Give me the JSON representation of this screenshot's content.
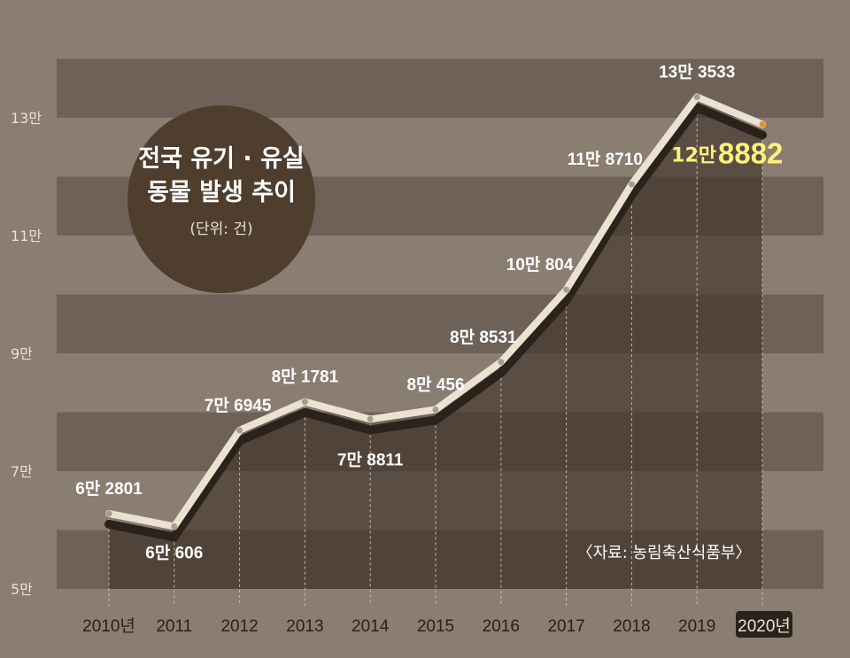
{
  "chart_data": {
    "type": "line",
    "title": "전국 유기 · 유실\n동물 발생 추이",
    "unit_note": "(단위: 건)",
    "source": "〈자료: 농림축산식품부〉",
    "categories": [
      "2010년",
      "2011",
      "2012",
      "2013",
      "2014",
      "2015",
      "2016",
      "2017",
      "2018",
      "2019",
      "2020년"
    ],
    "values": [
      62801,
      60606,
      76945,
      81781,
      78811,
      80456,
      88531,
      100804,
      118710,
      133533,
      128882
    ],
    "value_labels": [
      "6만 2801",
      "6만 606",
      "7만 6945",
      "8만 1781",
      "7만 8811",
      "8만 456",
      "8만 8531",
      "10만 804",
      "11만 8710",
      "13만 3533",
      "12만 8882"
    ],
    "highlight_label": {
      "small": "12만",
      "big": "8882"
    },
    "y_ticks": [
      "5만",
      "7만",
      "9만",
      "11만",
      "13만"
    ],
    "y_tick_values": [
      50000,
      70000,
      90000,
      110000,
      130000
    ],
    "ylim": [
      50000,
      140000
    ],
    "colors": {
      "background": "#8a7d72",
      "band": "#6e6258",
      "area": "#3e3229",
      "line": "#ece2d2",
      "shadow": "#2b221c",
      "marker": "#a89b8e",
      "highlight_marker": "#e8912a",
      "title_circle": "#4f3e2d",
      "highlight_text": "#fff27a"
    }
  }
}
